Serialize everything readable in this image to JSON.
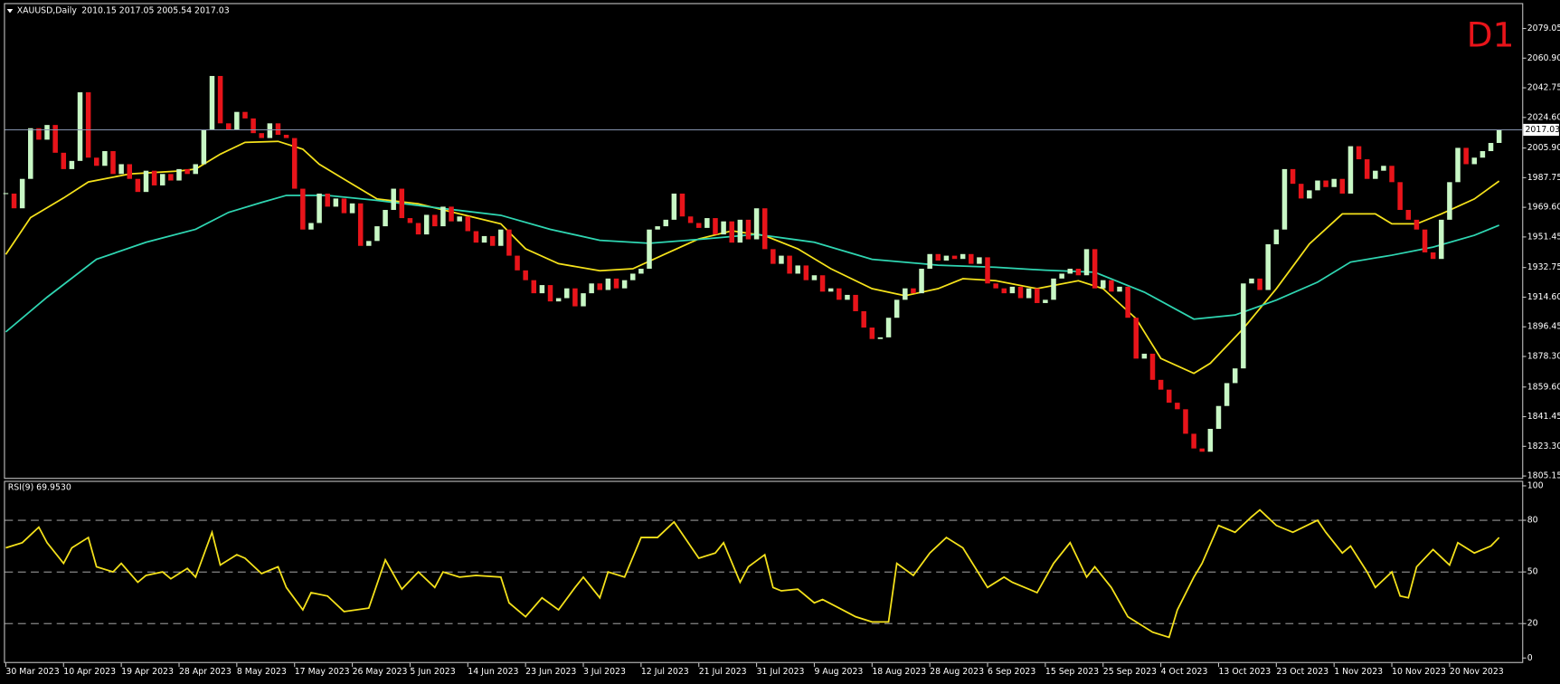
{
  "chart_data": [
    {
      "type": "candlestick",
      "title": "XAUUSD,Daily",
      "subtitle": "2010.15 2017.05 2005.54 2017.03",
      "annotation": "D1",
      "values": [
        1978,
        1969,
        1987,
        2018,
        2011,
        2020,
        2003,
        1993,
        1998,
        2040,
        2000,
        1995,
        2004,
        1990,
        1996,
        1987,
        1979,
        1992,
        1983,
        1990,
        1986,
        1993,
        1990,
        1996,
        2017,
        2050,
        2021,
        2017,
        2028,
        2024,
        2015,
        2012,
        2021,
        2014,
        2012,
        1981,
        1956,
        1960,
        1978,
        1970,
        1975,
        1966,
        1972,
        1946,
        1949,
        1958,
        1968,
        1981,
        1963,
        1960,
        1953,
        1965,
        1958,
        1970,
        1961,
        1964,
        1955,
        1948,
        1952,
        1946,
        1956,
        1940,
        1931,
        1925,
        1917,
        1922,
        1912,
        1914,
        1920,
        1909,
        1917,
        1923,
        1919,
        1926,
        1920,
        1925,
        1929,
        1932,
        1956,
        1958,
        1962,
        1978,
        1964,
        1960,
        1957,
        1963,
        1953,
        1961,
        1948,
        1962,
        1950,
        1969,
        1944,
        1935,
        1940,
        1929,
        1934,
        1925,
        1928,
        1918,
        1920,
        1913,
        1916,
        1906,
        1896,
        1889,
        1890,
        1902,
        1913,
        1920,
        1917,
        1932,
        1941,
        1937,
        1940,
        1938,
        1941,
        1935,
        1939,
        1923,
        1920,
        1917,
        1921,
        1914,
        1920,
        1911,
        1913,
        1926,
        1929,
        1932,
        1928,
        1944,
        1920,
        1925,
        1918,
        1921,
        1902,
        1877,
        1880,
        1864,
        1858,
        1850,
        1846,
        1831,
        1822,
        1820,
        1834,
        1848,
        1862,
        1871,
        1923,
        1926,
        1919,
        1947,
        1956,
        1993,
        1984,
        1975,
        1980,
        1986,
        1982,
        1987,
        1978,
        2007,
        1999,
        1987,
        1992,
        1995,
        1985,
        1968,
        1962,
        1956,
        1942,
        1938,
        1962,
        1985,
        2006,
        1996,
        2000,
        2004,
        2009,
        2017.03
      ],
      "up_color": "#c8f7c5",
      "down_color": "#e8141a",
      "series": [
        {
          "color": "#f5e21b",
          "x": [
            0,
            3,
            7,
            10,
            15,
            21,
            23,
            26,
            29,
            33,
            36,
            38,
            42,
            45,
            50,
            55,
            60,
            63,
            67,
            72,
            76,
            80,
            84,
            88,
            92,
            96,
            100,
            105,
            109,
            113,
            116,
            120,
            125,
            130,
            133,
            137,
            140,
            144,
            146,
            150,
            154,
            158,
            162,
            166,
            168,
            171,
            174,
            178,
            181
          ],
          "values": [
            1940.7,
            1963.3,
            1975.3,
            1985.1,
            1990,
            1991.8,
            1993,
            2002.1,
            2009.4,
            2010,
            2005.2,
            1996,
            1983.8,
            1974.7,
            1971.7,
            1965.6,
            1959.5,
            1944.2,
            1935.1,
            1930.8,
            1932,
            1941.2,
            1950.3,
            1955.2,
            1952.2,
            1944.2,
            1932,
            1919.8,
            1915.5,
            1919.8,
            1925.9,
            1924.7,
            1919.8,
            1924.7,
            1919.8,
            1901.5,
            1877.1,
            1868,
            1874.1,
            1895.4,
            1919.8,
            1947.2,
            1965.6,
            1965.6,
            1959.5,
            1959.5,
            1965.6,
            1974.7,
            1985.7
          ]
        },
        {
          "color": "#2fd6b2",
          "x": [
            0,
            5,
            11,
            17,
            23,
            27,
            31,
            34,
            39,
            45,
            52,
            60,
            66,
            72,
            78,
            84,
            91,
            98,
            105,
            113,
            120,
            126,
            132,
            138,
            144,
            149,
            154,
            159,
            163,
            168,
            173,
            178,
            181
          ],
          "values": [
            1893.3,
            1914.6,
            1937.8,
            1948.2,
            1956.1,
            1966.5,
            1972.6,
            1976.9,
            1976.9,
            1973.8,
            1969.5,
            1964.7,
            1956.1,
            1949.4,
            1947.6,
            1950,
            1953.1,
            1948.2,
            1937.8,
            1934.2,
            1932.9,
            1931.1,
            1929.9,
            1917.7,
            1901.2,
            1903.7,
            1912.8,
            1923.8,
            1936.1,
            1940.3,
            1945.2,
            1952.5,
            1958.6
          ]
        }
      ],
      "xlim": [
        -0.1,
        183.8
      ],
      "ylim": [
        1804,
        2094
      ],
      "yticks": [
        2079.05,
        {
          "value": 2060.9,
          "label": "2060.90"
        },
        2042.75,
        {
          "value": 2024.6,
          "label": "2024.60"
        },
        {
          "value": 2005.9,
          "label": "2005.90"
        },
        1987.75,
        {
          "value": 1969.6,
          "label": "1969.60"
        },
        1951.45,
        1932.75,
        {
          "value": 1914.6,
          "label": "1914.60"
        },
        1896.45,
        {
          "value": 1878.3,
          "label": "1878.30"
        },
        {
          "value": 1859.6,
          "label": "1859.60"
        },
        1841.45,
        {
          "value": 1823.3,
          "label": "1823.30"
        },
        1805.15
      ],
      "price_line": 2017.03,
      "price_line_color": "#8593ad"
    },
    {
      "type": "line",
      "title": "RSI(9) 69.9530",
      "color": "#f5e21b",
      "x": [
        0,
        2,
        4,
        5,
        7,
        8,
        10,
        11,
        13,
        14,
        16,
        17,
        19,
        20,
        22,
        23,
        25,
        26,
        28,
        29,
        31,
        33,
        34,
        36,
        37,
        39,
        41,
        44,
        46,
        48,
        50,
        52,
        53,
        55,
        57,
        60,
        61,
        63,
        65,
        67,
        69,
        70,
        72,
        73,
        75,
        77,
        79,
        81,
        84,
        86,
        87,
        89,
        90,
        92,
        93,
        94,
        96,
        98,
        99,
        101,
        103,
        105,
        107,
        108,
        110,
        112,
        114,
        116,
        119,
        121,
        122,
        125,
        127,
        129,
        131,
        132,
        134,
        136,
        139,
        141,
        142,
        144,
        145,
        147,
        149,
        151,
        152,
        154,
        156,
        159,
        160,
        162,
        163,
        165,
        166,
        168,
        169,
        170,
        171,
        173,
        175,
        176,
        178,
        180,
        181
      ],
      "values": [
        64,
        67,
        76,
        67,
        55,
        64,
        70,
        53,
        50,
        55,
        44,
        48,
        50,
        46,
        52,
        47,
        73,
        54,
        60,
        58,
        49,
        53,
        41,
        28,
        38,
        36,
        27,
        29,
        57,
        40,
        50,
        41,
        50,
        47,
        48,
        47,
        32,
        24,
        35,
        28,
        41,
        47,
        35,
        50,
        47,
        70,
        70,
        79,
        58,
        61,
        67,
        44,
        53,
        60,
        41,
        39,
        40,
        32,
        34,
        29,
        24,
        21,
        21,
        55,
        48,
        61,
        70,
        64,
        41,
        47,
        44,
        38,
        55,
        67,
        47,
        53,
        41,
        24,
        15,
        12,
        28,
        47,
        55,
        77,
        73,
        82,
        86,
        77,
        73,
        80,
        73,
        61,
        65,
        50,
        41,
        50,
        36,
        35,
        53,
        63,
        54,
        67,
        61,
        65,
        70
      ],
      "xlim": [
        -0.1,
        183.8
      ],
      "ylim": [
        0,
        100
      ],
      "yticks": [
        0,
        20,
        50,
        80,
        100
      ],
      "xticks": [
        {
          "value": 0,
          "label": "30 Mar 2023"
        },
        {
          "value": 7,
          "label": "10 Apr 2023"
        },
        {
          "value": 14,
          "label": "19 Apr 2023"
        },
        {
          "value": 21,
          "label": "28 Apr 2023"
        },
        {
          "value": 28,
          "label": "8 May 2023"
        },
        {
          "value": 35,
          "label": "17 May 2023"
        },
        {
          "value": 42,
          "label": "26 May 2023"
        },
        {
          "value": 49,
          "label": "5 Jun 2023"
        },
        {
          "value": 56,
          "label": "14 Jun 2023"
        },
        {
          "value": 63,
          "label": "23 Jun 2023"
        },
        {
          "value": 70,
          "label": "3 Jul 2023"
        },
        {
          "value": 77,
          "label": "12 Jul 2023"
        },
        {
          "value": 84,
          "label": "21 Jul 2023"
        },
        {
          "value": 91,
          "label": "31 Jul 2023"
        },
        {
          "value": 98,
          "label": "9 Aug 2023"
        },
        {
          "value": 105,
          "label": "18 Aug 2023"
        },
        {
          "value": 112,
          "label": "28 Aug 2023"
        },
        {
          "value": 119,
          "label": "6 Sep 2023"
        },
        {
          "value": 126,
          "label": "15 Sep 2023"
        },
        {
          "value": 133,
          "label": "25 Sep 2023"
        },
        {
          "value": 140,
          "label": "4 Oct 2023"
        },
        {
          "value": 147,
          "label": "13 Oct 2023"
        },
        {
          "value": 154,
          "label": "23 Oct 2023"
        },
        {
          "value": 161,
          "label": "1 Nov 2023"
        },
        {
          "value": 168,
          "label": "10 Nov 2023"
        },
        {
          "value": 175,
          "label": "20 Nov 2023"
        }
      ]
    }
  ]
}
